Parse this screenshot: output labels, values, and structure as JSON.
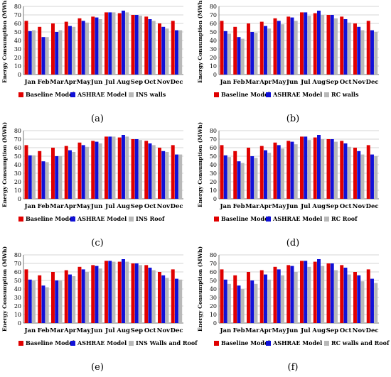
{
  "colors": {
    "baseline": "#e00000",
    "ashrae": "#1010d8",
    "variant": "#b8b8b8",
    "grid": "#c8c8c8",
    "axis": "#555555"
  },
  "chart_data": [
    {
      "type": "bar",
      "caption": "(a)",
      "ylabel": "Energy Consumption (MWh)",
      "ylim": [
        0,
        80
      ],
      "yticks": [
        0,
        10,
        20,
        30,
        40,
        50,
        60,
        70,
        80
      ],
      "grid": true,
      "legend_position": "bottom",
      "categories": [
        "Jan",
        "Feb",
        "Mar",
        "Apr",
        "May",
        "Jun",
        "Jul",
        "Aug",
        "Sep",
        "Oct",
        "Nov",
        "Dec"
      ],
      "series": [
        {
          "name": "Baseline Model",
          "color": "#e00000",
          "values": [
            63,
            56,
            60,
            62,
            66,
            68,
            73,
            72,
            70,
            68,
            60,
            63
          ]
        },
        {
          "name": "ASHRAE Model",
          "color": "#1010d8",
          "values": [
            51,
            44,
            50,
            57,
            63,
            67,
            73,
            75,
            70,
            65,
            56,
            52
          ]
        },
        {
          "name": "INS  walls",
          "color": "#b8b8b8",
          "values": [
            52,
            44,
            52,
            56,
            61,
            65,
            73,
            73,
            69,
            63,
            54,
            52
          ]
        }
      ]
    },
    {
      "type": "bar",
      "caption": "(b)",
      "ylabel": "Energy Consumption (MWh)",
      "ylim": [
        0,
        80
      ],
      "yticks": [
        0,
        10,
        20,
        30,
        40,
        50,
        60,
        70,
        80
      ],
      "grid": true,
      "legend_position": "bottom",
      "categories": [
        "Jan",
        "Feb",
        "Mar",
        "Apr",
        "May",
        "Jun",
        "Jul",
        "Aug",
        "Sep",
        "Oct",
        "Nov",
        "Dec"
      ],
      "series": [
        {
          "name": "Baseline Model",
          "color": "#e00000",
          "values": [
            63,
            56,
            60,
            62,
            66,
            68,
            73,
            72,
            70,
            68,
            60,
            63
          ]
        },
        {
          "name": "ASHRAE Model",
          "color": "#1010d8",
          "values": [
            51,
            44,
            50,
            57,
            63,
            67,
            73,
            75,
            70,
            65,
            56,
            52
          ]
        },
        {
          "name": "RC walls",
          "color": "#b8b8b8",
          "values": [
            48,
            42,
            49,
            54,
            59,
            63,
            69,
            70,
            66,
            61,
            52,
            50
          ]
        }
      ]
    },
    {
      "type": "bar",
      "caption": "(c)",
      "ylabel": "Energy Consumption (MWh)",
      "ylim": [
        0,
        80
      ],
      "yticks": [
        0,
        10,
        20,
        30,
        40,
        50,
        60,
        70,
        80
      ],
      "grid": true,
      "legend_position": "bottom",
      "categories": [
        "Jan",
        "Feb",
        "Mar",
        "Apr",
        "May",
        "Jun",
        "Jul",
        "Aug",
        "Sep",
        "Oct",
        "Nov",
        "Dec"
      ],
      "series": [
        {
          "name": "Baseline Model",
          "color": "#e00000",
          "values": [
            63,
            56,
            60,
            62,
            66,
            68,
            73,
            72,
            70,
            68,
            60,
            63
          ]
        },
        {
          "name": "ASHRAE Model",
          "color": "#1010d8",
          "values": [
            51,
            44,
            50,
            57,
            63,
            67,
            73,
            75,
            70,
            65,
            56,
            52
          ]
        },
        {
          "name": "INS Roof",
          "color": "#b8b8b8",
          "values": [
            51,
            43,
            50,
            55,
            61,
            65,
            73,
            73,
            69,
            63,
            55,
            52
          ]
        }
      ]
    },
    {
      "type": "bar",
      "caption": "(d)",
      "ylabel": "Energy Consumption (MWh)",
      "ylim": [
        0,
        80
      ],
      "yticks": [
        0,
        10,
        20,
        30,
        40,
        50,
        60,
        70,
        80
      ],
      "grid": true,
      "legend_position": "bottom",
      "categories": [
        "Jan",
        "Feb",
        "Mar",
        "Apr",
        "May",
        "Jun",
        "Jul",
        "Aug",
        "Sep",
        "Oct",
        "Nov",
        "Dec"
      ],
      "series": [
        {
          "name": "Baseline Model",
          "color": "#e00000",
          "values": [
            63,
            56,
            60,
            62,
            66,
            68,
            73,
            72,
            70,
            68,
            60,
            63
          ]
        },
        {
          "name": "ASHRAE Model",
          "color": "#1010d8",
          "values": [
            51,
            44,
            50,
            57,
            63,
            67,
            73,
            75,
            70,
            65,
            56,
            52
          ]
        },
        {
          "name": "RC Roof",
          "color": "#b8b8b8",
          "values": [
            49,
            42,
            48,
            54,
            59,
            64,
            69,
            70,
            67,
            61,
            52,
            50
          ]
        }
      ]
    },
    {
      "type": "bar",
      "caption": "(e)",
      "ylabel": "Energy Consumption (MWh)",
      "ylim": [
        0,
        80
      ],
      "yticks": [
        0,
        10,
        20,
        30,
        40,
        50,
        60,
        70,
        80
      ],
      "grid": true,
      "legend_position": "bottom",
      "categories": [
        "Jan",
        "Feb",
        "Mar",
        "Apr",
        "May",
        "Jun",
        "Jul",
        "Aug",
        "Sep",
        "Oct",
        "Nov",
        "Dec"
      ],
      "series": [
        {
          "name": "Baseline Model",
          "color": "#e00000",
          "values": [
            63,
            56,
            60,
            62,
            66,
            68,
            73,
            72,
            70,
            68,
            60,
            63
          ]
        },
        {
          "name": "ASHRAE Model",
          "color": "#1010d8",
          "values": [
            51,
            44,
            50,
            57,
            63,
            67,
            73,
            75,
            70,
            65,
            56,
            52
          ]
        },
        {
          "name": "INS Walls and Roof",
          "color": "#b8b8b8",
          "values": [
            50,
            42,
            50,
            55,
            60,
            64,
            72,
            72,
            68,
            62,
            53,
            51
          ]
        }
      ]
    },
    {
      "type": "bar",
      "caption": "(f)",
      "ylabel": "Energy Consumption (MWh)",
      "ylim": [
        0,
        80
      ],
      "yticks": [
        0,
        10,
        20,
        30,
        40,
        50,
        60,
        70,
        80
      ],
      "grid": true,
      "legend_position": "bottom",
      "categories": [
        "Jan",
        "Feb",
        "Mar",
        "Apr",
        "May",
        "Jun",
        "Jul",
        "Aug",
        "Sep",
        "Oct",
        "Nov",
        "Dec"
      ],
      "series": [
        {
          "name": "Baseline Model",
          "color": "#e00000",
          "values": [
            63,
            56,
            60,
            62,
            66,
            68,
            73,
            72,
            70,
            68,
            60,
            63
          ]
        },
        {
          "name": "ASHRAE Model",
          "color": "#1010d8",
          "values": [
            51,
            44,
            50,
            57,
            63,
            67,
            73,
            75,
            70,
            65,
            56,
            52
          ]
        },
        {
          "name": "RC walls and Roof",
          "color": "#b8b8b8",
          "values": [
            46,
            40,
            46,
            51,
            56,
            60,
            66,
            67,
            62,
            57,
            49,
            47
          ]
        }
      ]
    }
  ]
}
